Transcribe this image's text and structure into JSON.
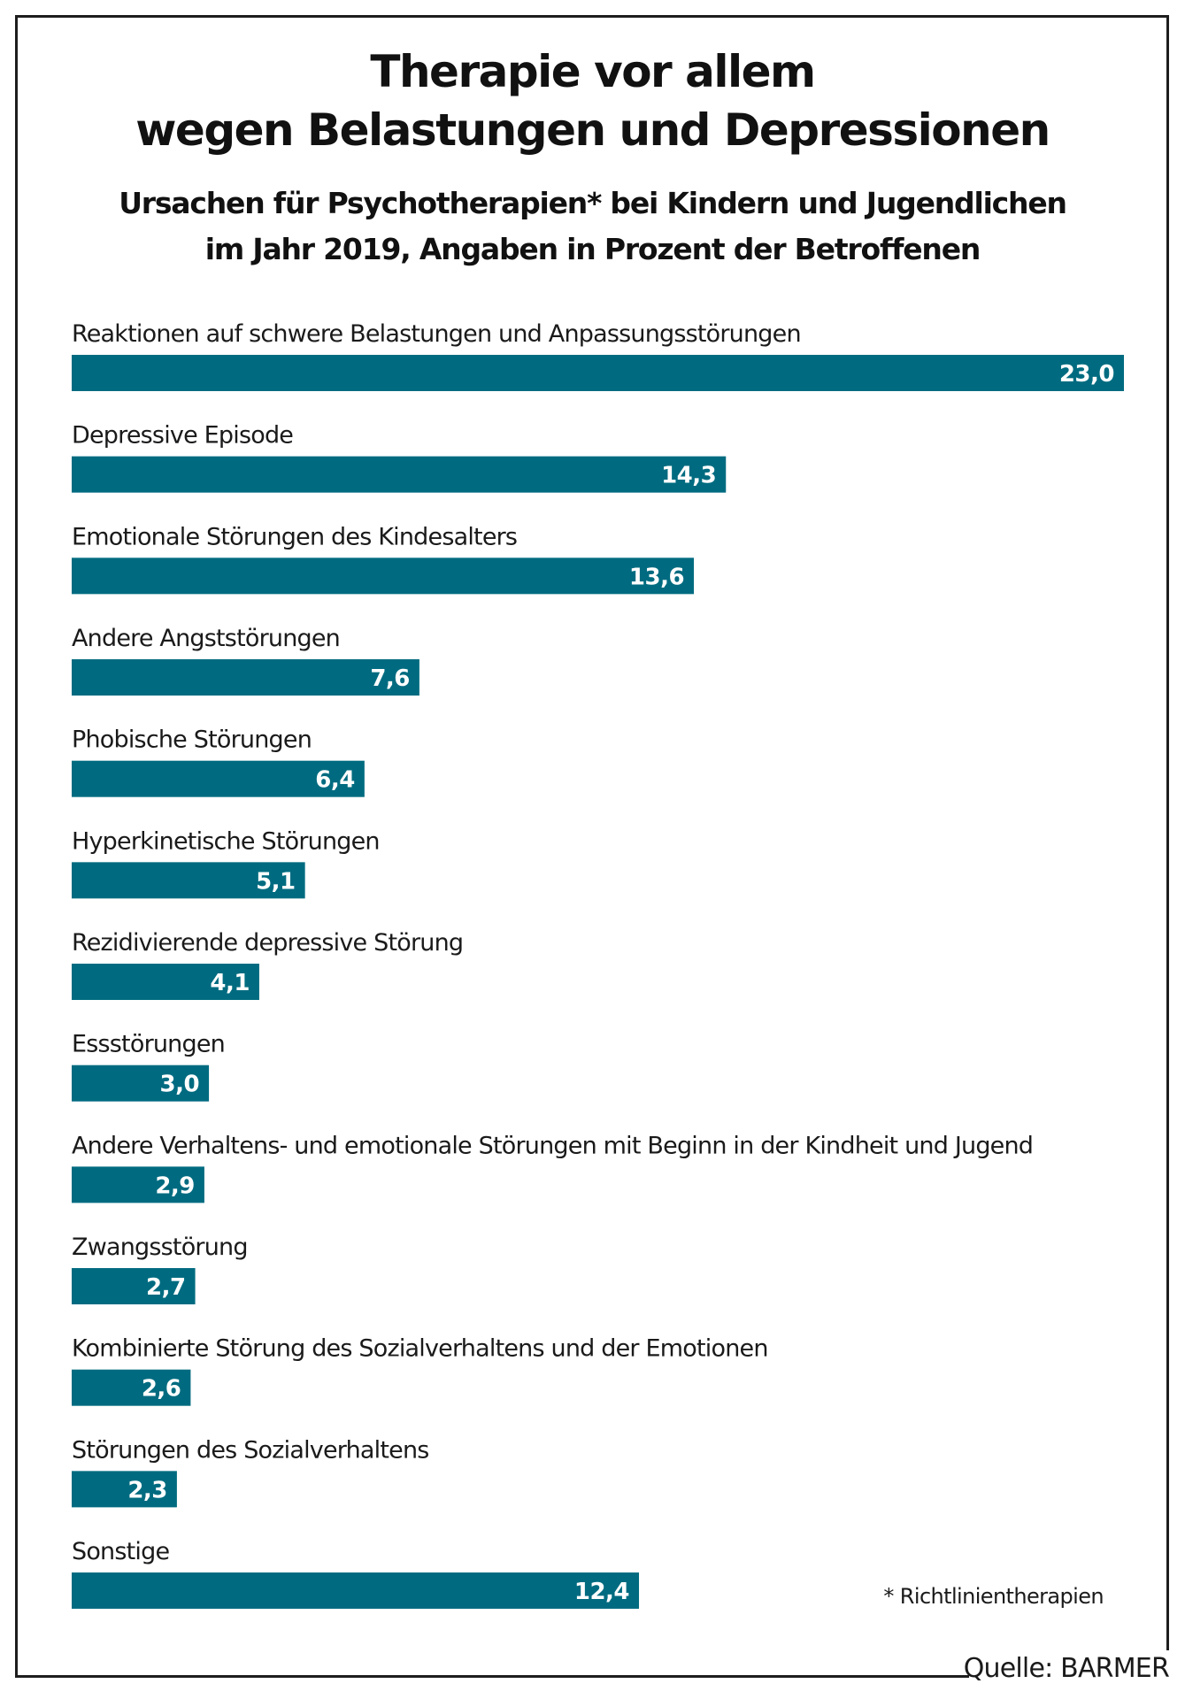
{
  "chart_data": {
    "type": "bar",
    "orientation": "horizontal",
    "title": "Therapie vor allem wegen Belastungen und Depressionen",
    "title_lines": [
      "Therapie vor allem",
      "wegen Belastungen und Depressionen"
    ],
    "subtitle_lines": [
      "Ursachen für Psychotherapien* bei Kindern und Jugendlichen",
      "im Jahr 2019, Angaben in Prozent der Betroffenen"
    ],
    "xlabel": "",
    "ylabel": "",
    "unit": "Prozent",
    "xlim": [
      0,
      23.0
    ],
    "grid": false,
    "categories": [
      "Reaktionen auf schwere Belastungen und Anpassungsstörungen",
      "Depressive Episode",
      "Emotionale Störungen des Kindesalters",
      "Andere Angststörungen",
      "Phobische Störungen",
      "Hyperkinetische Störungen",
      "Rezidivierende depressive Störung",
      "Essstörungen",
      "Andere Verhaltens- und emotionale Störungen mit Beginn in der Kindheit und Jugend",
      "Zwangsstörung",
      "Kombinierte Störung des Sozialverhaltens und der Emotionen",
      "Störungen des Sozialverhaltens",
      "Sonstige"
    ],
    "values": [
      23.0,
      14.3,
      13.6,
      7.6,
      6.4,
      5.1,
      4.1,
      3.0,
      2.9,
      2.7,
      2.6,
      2.3,
      12.4
    ],
    "value_labels": [
      "23,0",
      "14,3",
      "13,6",
      "7,6",
      "6,4",
      "5,1",
      "4,1",
      "3,0",
      "2,9",
      "2,7",
      "2,6",
      "2,3",
      "12,4"
    ],
    "bar_color": "#006B80",
    "footnote": "* Richtlinientherapien",
    "source": "Quelle: BARMER"
  }
}
